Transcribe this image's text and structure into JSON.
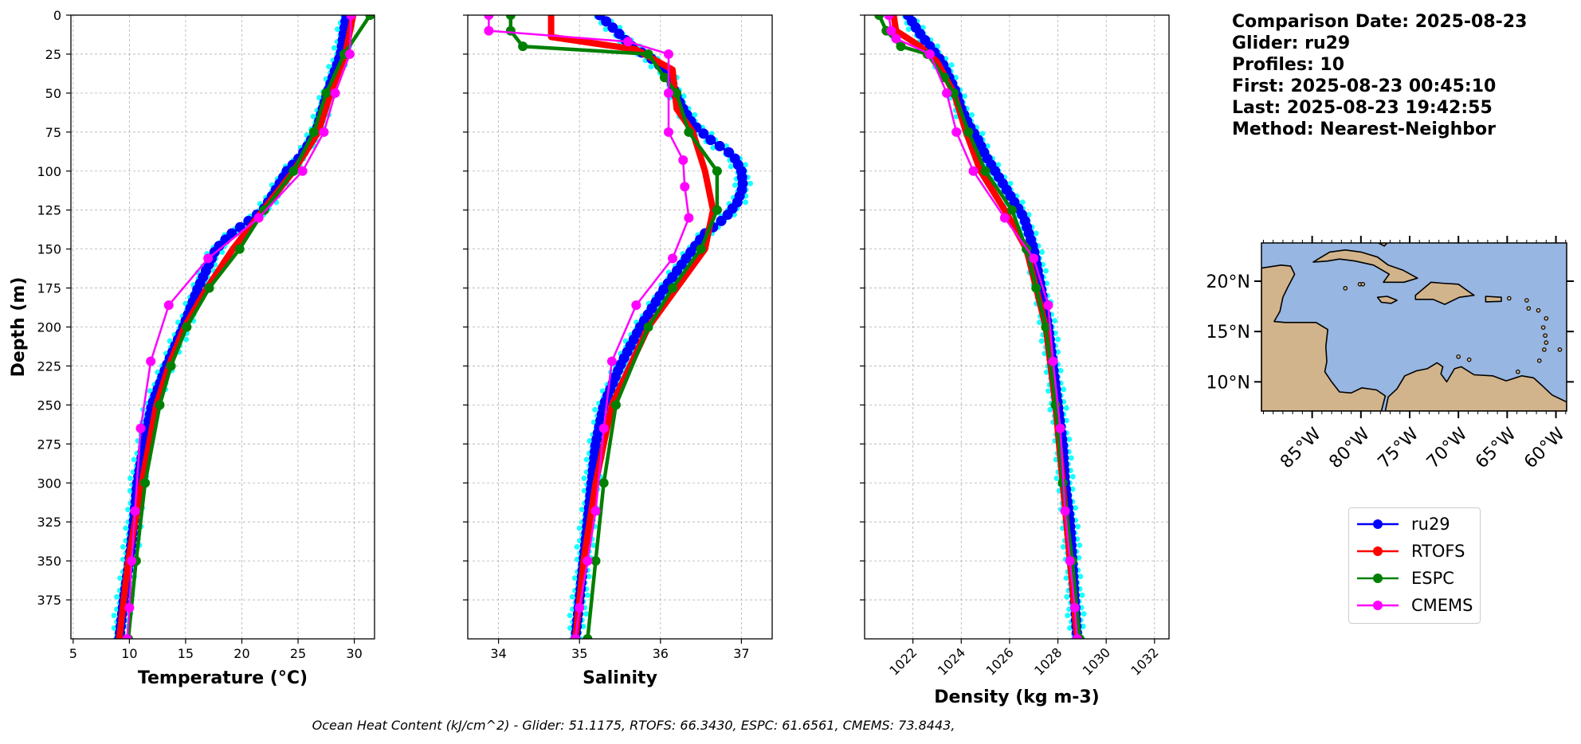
{
  "figure": {
    "info_lines": [
      "Comparison Date: 2025-08-23",
      "",
      "Glider: ru29",
      "Profiles: 10",
      "First: 2025-08-23 00:45:10",
      "Last: 2025-08-23 19:42:55",
      "Method: Nearest-Neighbor"
    ],
    "ohc_text": "Ocean Heat Content (kJ/cm^2) - Glider: 51.1175,  RTOFS: 66.3430,  ESPC: 61.6561,  CMEMS: 73.8443,"
  },
  "legend": [
    {
      "name": "ru29",
      "color": "#0000ff"
    },
    {
      "name": "RTOFS",
      "color": "#ff0000"
    },
    {
      "name": "ESPC",
      "color": "#008000"
    },
    {
      "name": "CMEMS",
      "color": "#ff00ff"
    }
  ],
  "map": {
    "lat_ticks": [
      "20°N",
      "15°N",
      "10°N"
    ],
    "lon_ticks": [
      "85°W",
      "80°W",
      "75°W",
      "70°W",
      "65°W",
      "60°W"
    ],
    "ocean_color": "#97b6e1",
    "land_color": "#d2b48c"
  },
  "chart_data": [
    {
      "type": "line",
      "xlabel": "Temperature (°C)",
      "ylabel": "Depth (m)",
      "xlim": [
        4.8,
        31.8
      ],
      "ylim": [
        400,
        0
      ],
      "xticks": [
        5,
        10,
        15,
        20,
        25,
        30
      ],
      "yticks": [
        0,
        25,
        50,
        75,
        100,
        125,
        150,
        175,
        200,
        225,
        250,
        275,
        300,
        325,
        350,
        375
      ],
      "grid": true,
      "series": [
        {
          "name": "ru29",
          "depth": [
            0,
            25,
            50,
            75,
            90,
            100,
            110,
            125,
            140,
            150,
            175,
            200,
            225,
            250,
            275,
            300,
            325,
            350,
            375,
            400
          ],
          "values": [
            29.3,
            28.8,
            27.6,
            26.6,
            25.3,
            24.0,
            23.2,
            21.9,
            19.1,
            17.7,
            16.1,
            14.8,
            13.3,
            12.0,
            11.3,
            10.7,
            10.4,
            10.0,
            9.5,
            9.1
          ]
        },
        {
          "name": "RTOFS",
          "depth": [
            0,
            25,
            50,
            75,
            100,
            125,
            150,
            175,
            200,
            225,
            250,
            300,
            350,
            400
          ],
          "values": [
            29.9,
            29.2,
            27.9,
            26.8,
            24.6,
            21.9,
            19.2,
            16.9,
            14.9,
            13.5,
            12.4,
            11.1,
            9.9,
            9.1
          ]
        },
        {
          "name": "ESPC",
          "depth": [
            0,
            25,
            50,
            75,
            100,
            125,
            150,
            175,
            200,
            225,
            250,
            300,
            350,
            400
          ],
          "values": [
            31.4,
            29.1,
            27.5,
            26.4,
            24.6,
            22.0,
            19.8,
            17.1,
            15.1,
            13.7,
            12.7,
            11.4,
            10.6,
            9.9
          ]
        },
        {
          "name": "CMEMS",
          "depth": [
            0,
            25,
            50,
            75,
            100,
            130,
            156,
            186,
            222,
            265,
            318,
            350,
            380,
            400
          ],
          "values": [
            29.7,
            29.6,
            28.3,
            27.3,
            25.4,
            21.5,
            17.0,
            13.5,
            11.9,
            11.0,
            10.5,
            10.2,
            10.0,
            9.8
          ]
        }
      ]
    },
    {
      "type": "line",
      "xlabel": "Salinity",
      "ylabel": "",
      "xlim": [
        33.62,
        37.38
      ],
      "ylim": [
        400,
        0
      ],
      "xticks": [
        34,
        35,
        36,
        37
      ],
      "yticks": [
        0,
        25,
        50,
        75,
        100,
        125,
        150,
        175,
        200,
        225,
        250,
        275,
        300,
        325,
        350,
        375
      ],
      "grid": true,
      "series": [
        {
          "name": "ru29",
          "depth": [
            0,
            10,
            20,
            30,
            40,
            50,
            60,
            70,
            80,
            90,
            100,
            110,
            120,
            130,
            140,
            150,
            175,
            200,
            225,
            250,
            275,
            300,
            325,
            350,
            375,
            400
          ],
          "values": [
            35.25,
            35.45,
            35.65,
            35.95,
            36.12,
            36.18,
            36.28,
            36.4,
            36.62,
            36.9,
            37.0,
            37.02,
            36.95,
            36.8,
            36.55,
            36.4,
            36.05,
            35.75,
            35.5,
            35.3,
            35.2,
            35.15,
            35.1,
            35.05,
            35.0,
            34.95
          ]
        },
        {
          "name": "RTOFS",
          "depth": [
            0,
            14,
            22,
            35,
            60,
            75,
            100,
            125,
            150,
            175,
            200,
            250,
            300,
            350,
            400
          ],
          "values": [
            34.65,
            34.65,
            35.7,
            36.15,
            36.2,
            36.4,
            36.55,
            36.65,
            36.55,
            36.2,
            35.85,
            35.4,
            35.2,
            35.05,
            34.95
          ]
        },
        {
          "name": "ESPC",
          "depth": [
            0,
            10,
            20,
            25,
            40,
            50,
            75,
            100,
            125,
            150,
            175,
            200,
            250,
            300,
            350,
            400
          ],
          "values": [
            34.15,
            34.15,
            34.3,
            35.85,
            36.05,
            36.2,
            36.35,
            36.7,
            36.7,
            36.5,
            36.15,
            35.85,
            35.45,
            35.3,
            35.2,
            35.1
          ]
        },
        {
          "name": "CMEMS",
          "depth": [
            0,
            10,
            17,
            25,
            50,
            75,
            93,
            110,
            130,
            156,
            186,
            222,
            265,
            318,
            350,
            380,
            400
          ],
          "values": [
            33.88,
            33.88,
            35.6,
            36.1,
            36.1,
            36.1,
            36.28,
            36.3,
            36.35,
            36.15,
            35.7,
            35.4,
            35.3,
            35.2,
            35.1,
            35.0,
            34.95
          ]
        }
      ]
    },
    {
      "type": "line",
      "xlabel": "Density (kg m-3)",
      "ylabel": "",
      "xlim": [
        1020.0,
        1032.6
      ],
      "ylim": [
        400,
        0
      ],
      "xticks": [
        1022,
        1024,
        1026,
        1028,
        1030,
        1032
      ],
      "yticks": [
        0,
        25,
        50,
        75,
        100,
        125,
        150,
        175,
        200,
        225,
        250,
        275,
        300,
        325,
        350,
        375
      ],
      "grid": true,
      "series": [
        {
          "name": "ru29",
          "depth": [
            0,
            10,
            20,
            30,
            40,
            50,
            60,
            70,
            80,
            90,
            100,
            110,
            120,
            130,
            140,
            150,
            175,
            200,
            225,
            250,
            275,
            300,
            325,
            350,
            375,
            400
          ],
          "values": [
            1021.8,
            1022.2,
            1022.7,
            1023.2,
            1023.5,
            1023.8,
            1024.0,
            1024.3,
            1024.7,
            1025.0,
            1025.4,
            1025.8,
            1026.2,
            1026.6,
            1026.8,
            1027.0,
            1027.3,
            1027.6,
            1027.8,
            1028.0,
            1028.2,
            1028.3,
            1028.5,
            1028.6,
            1028.7,
            1028.8
          ]
        },
        {
          "name": "RTOFS",
          "depth": [
            0,
            10,
            20,
            30,
            50,
            75,
            100,
            125,
            150,
            175,
            200,
            250,
            300,
            350,
            400
          ],
          "values": [
            1021.2,
            1021.3,
            1022.3,
            1023.0,
            1023.7,
            1024.2,
            1024.8,
            1025.8,
            1026.7,
            1027.1,
            1027.5,
            1027.9,
            1028.2,
            1028.5,
            1028.8
          ]
        },
        {
          "name": "ESPC",
          "depth": [
            0,
            10,
            20,
            25,
            40,
            50,
            75,
            100,
            125,
            150,
            175,
            200,
            250,
            300,
            350,
            400
          ],
          "values": [
            1020.6,
            1020.9,
            1021.5,
            1022.6,
            1023.3,
            1023.7,
            1024.3,
            1025.0,
            1026.1,
            1026.7,
            1027.1,
            1027.5,
            1027.9,
            1028.2,
            1028.6,
            1028.9
          ]
        },
        {
          "name": "CMEMS",
          "depth": [
            0,
            10,
            15,
            25,
            50,
            75,
            100,
            130,
            156,
            186,
            222,
            265,
            318,
            350,
            380,
            400
          ],
          "values": [
            1021.0,
            1021.1,
            1021.3,
            1022.7,
            1023.4,
            1023.8,
            1024.5,
            1025.8,
            1027.0,
            1027.6,
            1027.8,
            1028.1,
            1028.3,
            1028.5,
            1028.7,
            1028.8
          ]
        }
      ]
    }
  ]
}
